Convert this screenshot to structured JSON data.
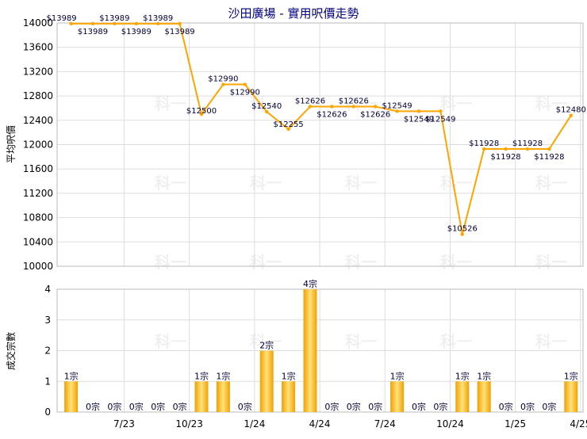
{
  "chart_data": [
    {
      "type": "line",
      "title": "沙田廣場 - 實用呎價走勢",
      "ylabel": "平均呎價",
      "ylim": [
        10000,
        14000
      ],
      "yticks": [
        10000,
        10400,
        10800,
        11200,
        11600,
        12000,
        12400,
        12800,
        13200,
        13600,
        14000
      ],
      "grid": true,
      "color": "#ffa500",
      "series": [
        {
          "values": [
            13989,
            13989,
            13989,
            13989,
            13989,
            13989,
            12500,
            12990,
            12990,
            12540,
            12255,
            12626,
            12626,
            12626,
            12626,
            12549,
            12549,
            12549,
            10526,
            11928,
            11928,
            11928,
            11928,
            12480
          ],
          "labels": [
            "$13989",
            "$13989",
            "$13989",
            "$13989",
            "$13989",
            "$13989",
            "$12500",
            "$12990",
            "$12990",
            "$12540",
            "$12255",
            "$12626",
            "$12626",
            "$12626",
            "$12626",
            "$12549",
            "$12549",
            "$12549",
            "$10526",
            "$11928",
            "$11928",
            "$11928",
            "$11928",
            "$12480"
          ]
        }
      ]
    },
    {
      "type": "bar",
      "ylabel": "成交宗數",
      "ylim": [
        0,
        4
      ],
      "yticks": [
        0,
        1,
        2,
        3,
        4
      ],
      "grid": true,
      "color": "#f5a800",
      "categories": [
        "7/23",
        "10/23",
        "1/24",
        "4/24",
        "7/24",
        "10/24",
        "1/25",
        "4/25"
      ],
      "values": [
        1,
        0,
        0,
        0,
        0,
        0,
        1,
        1,
        0,
        2,
        1,
        4,
        0,
        0,
        0,
        1,
        0,
        0,
        1,
        1,
        0,
        0,
        0,
        1
      ],
      "labels": [
        "1宗",
        "0宗",
        "0宗",
        "0宗",
        "0宗",
        "0宗",
        "1宗",
        "1宗",
        "0宗",
        "2宗",
        "1宗",
        "4宗",
        "0宗",
        "0宗",
        "0宗",
        "1宗",
        "0宗",
        "0宗",
        "1宗",
        "1宗",
        "0宗",
        "0宗",
        "0宗",
        "1宗"
      ]
    }
  ],
  "watermark": "科一"
}
